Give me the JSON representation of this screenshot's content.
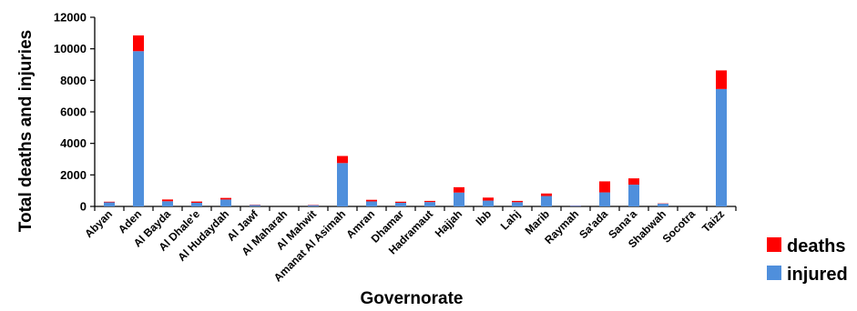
{
  "chart_data": {
    "type": "bar",
    "stacked": true,
    "title": "",
    "xlabel": "Governorate",
    "ylabel": "Total deaths and injuries",
    "ylim": [
      0,
      12000
    ],
    "yticks": [
      "0",
      "2000",
      "4000",
      "6000",
      "8000",
      "10000",
      "12000"
    ],
    "categories": [
      "Abyan",
      "Aden",
      "Al Bayda",
      "Al Dhale'e",
      "Al Hudaydah",
      "Al Jawf",
      "Al Maharah",
      "Al Mahwit",
      "Amanat Al Asimah",
      "Amran",
      "Dhamar",
      "Hadramaut",
      "Hajjah",
      "Ibb",
      "Lahj",
      "Marib",
      "Raymah",
      "Sa'ada",
      "Sana'a",
      "Shabwah",
      "Socotra",
      "Taizz"
    ],
    "series": [
      {
        "name": "injured",
        "color": "#4f8fdc",
        "values": [
          260,
          9850,
          330,
          230,
          440,
          90,
          0,
          80,
          2750,
          320,
          230,
          280,
          880,
          370,
          270,
          660,
          50,
          890,
          1380,
          170,
          0,
          7450
        ]
      },
      {
        "name": "deaths",
        "color": "#ff0000",
        "values": [
          40,
          1000,
          110,
          80,
          100,
          20,
          0,
          20,
          450,
          100,
          70,
          70,
          340,
          190,
          80,
          160,
          10,
          700,
          400,
          20,
          0,
          1180
        ]
      }
    ],
    "legend": {
      "position": "bottom-right",
      "order": [
        "deaths",
        "injured"
      ]
    },
    "grid": false
  }
}
